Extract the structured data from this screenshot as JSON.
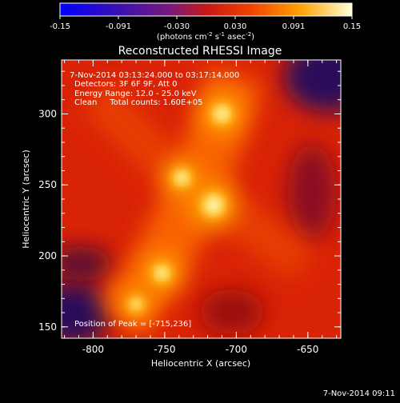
{
  "chart_data": {
    "type": "heatmap",
    "title": "Reconstructed RHESSI Image",
    "xlabel": "Heliocentric X (arcsec)",
    "ylabel": "Heliocentric Y (arcsec)",
    "xlim": [
      -822,
      -627
    ],
    "ylim": [
      142,
      338
    ],
    "xticks": [
      -800,
      -750,
      -700,
      -650
    ],
    "yticks": [
      150,
      200,
      250,
      300
    ],
    "colorbar": {
      "unit_main": "(photons cm",
      "unit_sup1": "-2",
      "unit_mid": " s",
      "unit_sup2": "-1",
      "unit_end": " asec",
      "unit_sup3": "-2",
      "unit_close": ")",
      "ticks": [
        "-0.15",
        "-0.091",
        "-0.030",
        "0.030",
        "0.091",
        "0.15"
      ],
      "range": [
        -0.15,
        0.15
      ]
    },
    "annotations": [
      "7-Nov-2014 03:13:24.000 to 03:17:14.000",
      "Detectors: 3F 6F 9F, Att 0",
      "Energy Range: 12.0 - 25.0 keV",
      "Clean     Total counts: 1.60E+05"
    ],
    "peak_label": "Position of Peak = [-715,236]",
    "sources": [
      {
        "x": -716,
        "y": 236,
        "value": 0.15
      },
      {
        "x": -738,
        "y": 255,
        "value": 0.12
      },
      {
        "x": -710,
        "y": 300,
        "value": 0.13
      },
      {
        "x": -752,
        "y": 188,
        "value": 0.12
      },
      {
        "x": -770,
        "y": 166,
        "value": 0.1
      }
    ]
  },
  "footer": "7-Nov-2014 09:11"
}
